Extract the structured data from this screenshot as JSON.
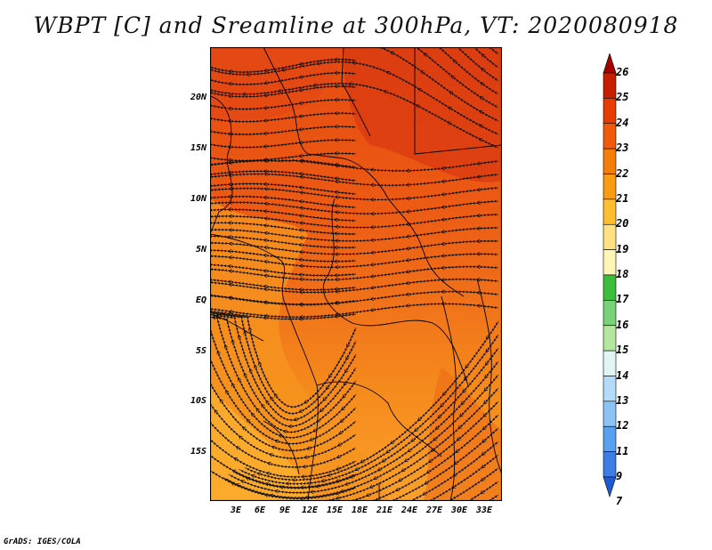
{
  "title": "WBPT [C] and Sreamline at 300hPa, VT: 2020080918",
  "footer": "GrADS: IGES/COLA",
  "map": {
    "lat_labels": [
      "20N",
      "15N",
      "10N",
      "5N",
      "EQ",
      "5S",
      "10S",
      "15S"
    ],
    "lon_labels": [
      "3E",
      "6E",
      "9E",
      "12E",
      "15E",
      "18E",
      "21E",
      "24E",
      "27E",
      "30E",
      "33E"
    ]
  },
  "colorbar": {
    "labels": [
      "26",
      "25",
      "24",
      "23",
      "22",
      "21",
      "20",
      "19",
      "18",
      "17",
      "16",
      "15",
      "14",
      "13",
      "12",
      "11",
      "9",
      "7"
    ],
    "colors": [
      "#a50000",
      "#c81e00",
      "#e63c00",
      "#f05a0a",
      "#f57d0a",
      "#fa9b14",
      "#ffbe32",
      "#ffe182",
      "#fff5b4",
      "#3cbe3c",
      "#78d278",
      "#b4e6a0",
      "#e1f5f5",
      "#b4dcfa",
      "#8cc3f5",
      "#5aa0f0",
      "#3c7de6",
      "#1e5ad2"
    ]
  }
}
